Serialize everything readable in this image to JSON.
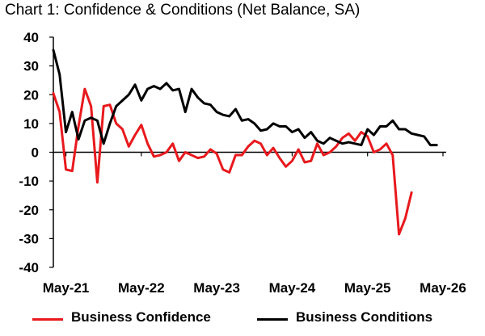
{
  "title": "Chart 1: Confidence & Conditions (Net Balance, SA)",
  "chart_data": {
    "type": "line",
    "title": "Chart 1: Confidence & Conditions (Net Balance, SA)",
    "xlabel": "",
    "ylabel": "",
    "ylim": [
      -40,
      40
    ],
    "yticks": [
      "40",
      "30",
      "20",
      "10",
      "0",
      "-10",
      "-20",
      "-30",
      "-40"
    ],
    "xtick_labels": [
      "May-21",
      "May-22",
      "May-23",
      "May-24",
      "May-25",
      "May-26"
    ],
    "grid": false,
    "legend": "bottom",
    "x": [
      "2021-03",
      "2021-04",
      "2021-05",
      "2021-06",
      "2021-07",
      "2021-08",
      "2021-09",
      "2021-10",
      "2021-11",
      "2021-12",
      "2022-01",
      "2022-02",
      "2022-03",
      "2022-04",
      "2022-05",
      "2022-06",
      "2022-07",
      "2022-08",
      "2022-09",
      "2022-10",
      "2022-11",
      "2022-12",
      "2023-01",
      "2023-02",
      "2023-03",
      "2023-04",
      "2023-05",
      "2023-06",
      "2023-07",
      "2023-08",
      "2023-09",
      "2023-10",
      "2023-11",
      "2023-12",
      "2024-01",
      "2024-02",
      "2024-03",
      "2024-04",
      "2024-05",
      "2024-06",
      "2024-07",
      "2024-08",
      "2024-09",
      "2024-10",
      "2024-11",
      "2024-12",
      "2025-01",
      "2025-02",
      "2025-03",
      "2025-04",
      "2025-05",
      "2025-06",
      "2025-07",
      "2025-08",
      "2025-09",
      "2025-10",
      "2025-11",
      "2025-12",
      "2026-01",
      "2026-02",
      "2026-03",
      "2026-04",
      "2026-05"
    ],
    "series": [
      {
        "name": "Business Confidence",
        "color": "#e8191d",
        "values": [
          20.5,
          14,
          -6,
          -6.5,
          9,
          22,
          16,
          -10.5,
          16,
          16.5,
          10,
          8,
          2,
          6,
          9.5,
          3,
          -1.5,
          -1,
          0,
          3,
          -3,
          0,
          -1,
          -2,
          -1.5,
          1,
          -0.5,
          -6,
          -7,
          -1,
          -1,
          2,
          4,
          3,
          -1,
          1.5,
          -2,
          -5,
          -3,
          1,
          -3.5,
          -3,
          3,
          -1,
          0,
          2,
          5,
          6.5,
          4,
          7,
          5.5,
          0,
          1,
          3,
          -1,
          -28.5,
          -23,
          -14,
          null,
          null,
          null,
          null,
          null
        ]
      },
      {
        "name": "Business Conditions",
        "color": "#000000",
        "values": [
          35.5,
          27,
          7,
          14,
          4.5,
          11,
          12,
          11,
          3,
          10,
          16,
          18,
          20,
          23.5,
          18,
          22,
          23,
          22,
          24,
          21.5,
          22,
          14,
          22,
          19,
          17,
          16.5,
          14,
          13,
          12.5,
          15,
          11,
          11.5,
          10,
          7.5,
          8,
          10,
          9,
          9,
          7,
          8,
          5,
          7,
          4,
          3,
          5,
          4,
          3,
          3.5,
          3,
          2.5,
          8,
          6,
          9,
          9,
          11,
          8,
          8,
          6.5,
          6,
          5.5,
          2.5,
          2.5,
          null
        ]
      }
    ]
  }
}
